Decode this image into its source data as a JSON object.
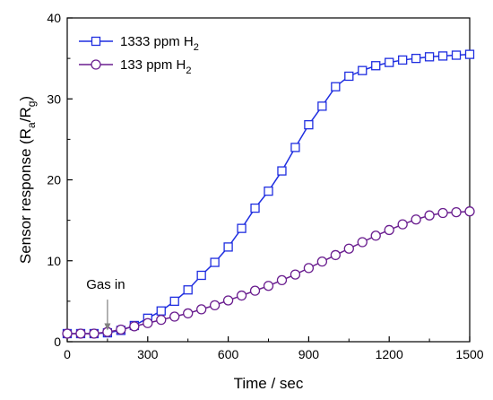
{
  "chart_data": {
    "type": "line",
    "xlabel": "Time / sec",
    "ylabel_parts": {
      "prefix": "Sensor response (R",
      "sub1": "a",
      "mid": "/R",
      "sub2": "g",
      "suffix": ")"
    },
    "xlim": [
      0,
      1500
    ],
    "ylim": [
      0,
      40
    ],
    "x_ticks": [
      0,
      300,
      600,
      900,
      1200,
      1500
    ],
    "y_ticks": [
      0,
      10,
      20,
      30,
      40
    ],
    "x_ticks_minor": [
      150,
      450,
      750,
      1050,
      1350
    ],
    "y_ticks_minor": [
      5,
      15,
      25,
      35
    ],
    "grid": false,
    "legend": {
      "placement": "top-left",
      "entries": [
        {
          "text": "1333 ppm H",
          "sub": "2"
        },
        {
          "text": "133 ppm H",
          "sub": "2"
        }
      ]
    },
    "annotations": [
      {
        "text": "Gas in",
        "x": 150,
        "y": 1.5,
        "arrow_from_y": 5.2
      }
    ],
    "series": [
      {
        "name": "1333 ppm H2",
        "color": "#1f2ee0",
        "marker": "square",
        "x": [
          0,
          50,
          100,
          150,
          200,
          250,
          300,
          350,
          400,
          450,
          500,
          550,
          600,
          650,
          700,
          750,
          800,
          850,
          900,
          950,
          1000,
          1050,
          1100,
          1150,
          1200,
          1250,
          1300,
          1350,
          1400,
          1450,
          1500
        ],
        "y": [
          1.0,
          1.0,
          1.0,
          1.1,
          1.4,
          2.0,
          2.9,
          3.8,
          5.0,
          6.4,
          8.2,
          9.8,
          11.7,
          14.0,
          16.5,
          18.6,
          21.1,
          24.0,
          26.8,
          29.1,
          31.5,
          32.8,
          33.5,
          34.1,
          34.5,
          34.8,
          35.0,
          35.2,
          35.3,
          35.4,
          35.5
        ]
      },
      {
        "name": "133 ppm H2",
        "color": "#6a1e8f",
        "marker": "circle",
        "x": [
          0,
          50,
          100,
          150,
          200,
          250,
          300,
          350,
          400,
          450,
          500,
          550,
          600,
          650,
          700,
          750,
          800,
          850,
          900,
          950,
          1000,
          1050,
          1100,
          1150,
          1200,
          1250,
          1300,
          1350,
          1400,
          1450,
          1500
        ],
        "y": [
          1.0,
          1.0,
          1.0,
          1.2,
          1.5,
          1.9,
          2.3,
          2.7,
          3.1,
          3.5,
          4.0,
          4.5,
          5.1,
          5.7,
          6.3,
          6.9,
          7.6,
          8.3,
          9.1,
          9.9,
          10.7,
          11.5,
          12.3,
          13.1,
          13.8,
          14.5,
          15.1,
          15.6,
          15.9,
          16.0,
          16.1
        ]
      }
    ]
  }
}
